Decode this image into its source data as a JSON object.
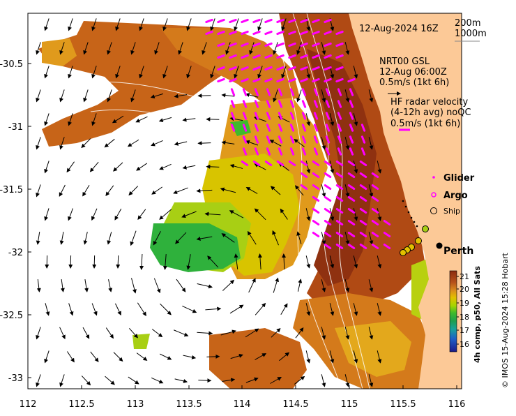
{
  "map": {
    "timestamp": "12-Aug-2024 16Z",
    "isobath_labels": [
      "200m",
      "1000m"
    ],
    "model": {
      "name": "NRT00 GSL",
      "time": "12-Aug 06:00Z",
      "scale": "0.5m/s (1kt 6h)"
    },
    "radar": {
      "title": "HF radar velocity",
      "avg": "(4-12h avg) noQC",
      "scale": "0.5m/s (1kt 6h)"
    },
    "legend": {
      "glider": "Glider",
      "argo": "Argo",
      "ship": "Ship"
    },
    "place_label": "Perth",
    "x_ticks": [
      "112",
      "112.5",
      "113",
      "113.5",
      "114",
      "114.5",
      "115",
      "115.5",
      "116"
    ],
    "y_ticks": [
      "-30.5",
      "-31",
      "-31.5",
      "-32",
      "-32.5",
      "-33"
    ],
    "colorbar": {
      "label": "4h comp, p50, All Sats",
      "ticks": [
        "21",
        "20",
        "19",
        "18",
        "17",
        "16"
      ],
      "colors": [
        "#8b2a0e",
        "#b5501a",
        "#d98a1e",
        "#e3c000",
        "#a6d500",
        "#3fba2c",
        "#1f9e4e",
        "#1aa19a",
        "#1e5fc7",
        "#1b1a8a"
      ]
    },
    "credit": "© IMOS 15-Aug-2024 15:28 Hobart",
    "colors": {
      "land": "#fcc997",
      "warm": "#c05a18",
      "mid": "#e09a1c",
      "yellow": "#d8c400",
      "lime": "#a8cf14",
      "green": "#2fb13c",
      "radar": "#ff00ff"
    }
  }
}
